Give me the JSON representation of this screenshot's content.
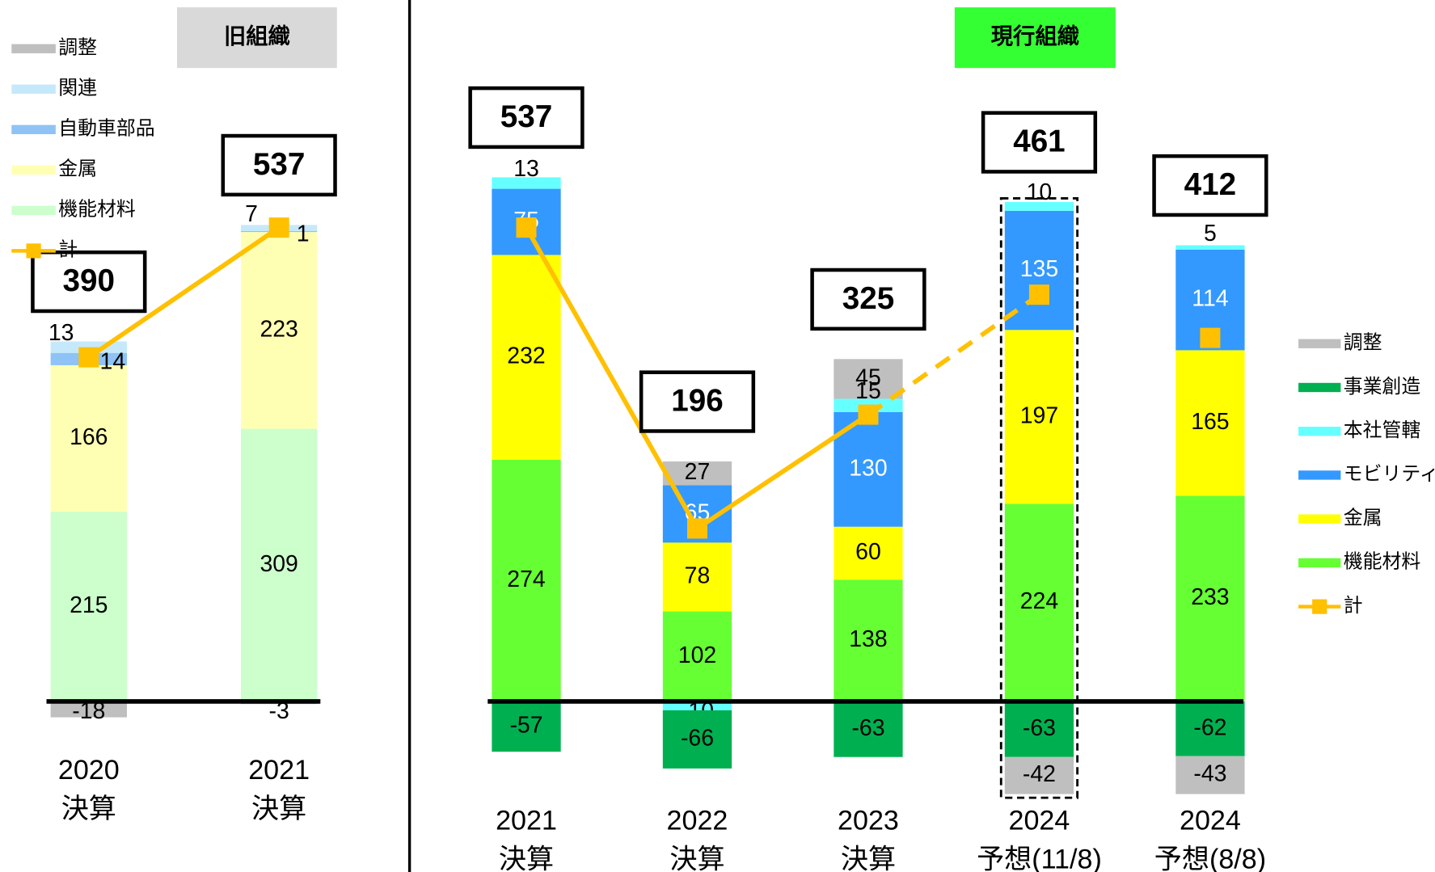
{
  "chart_data": [
    {
      "type": "bar",
      "stacked": true,
      "title": "旧組織",
      "title_color": "#d9d9d9",
      "legend": "upper left",
      "categories": [
        [
          "2020",
          "決算"
        ],
        [
          "2021",
          "決算"
        ]
      ],
      "ylim": [
        -110,
        620
      ],
      "series": [
        {
          "name": "調整",
          "color": "#bfbfbf",
          "values": [
            -18,
            -3
          ]
        },
        {
          "name": "関連",
          "color": "#c5e9fb",
          "values": [
            13,
            7
          ]
        },
        {
          "name": "自動車部品",
          "color": "#8fc3f5",
          "values": [
            14,
            1
          ]
        },
        {
          "name": "金属",
          "color": "#ffffb3",
          "values": [
            166,
            223
          ]
        },
        {
          "name": "機能材料",
          "color": "#ccffcc",
          "values": [
            215,
            309
          ]
        },
        {
          "name": "計",
          "type": "line",
          "color": "#ffc000",
          "values": [
            390,
            537
          ],
          "line_style": [
            "solid"
          ]
        }
      ]
    },
    {
      "type": "bar",
      "stacked": true,
      "title": "現行組織",
      "title_color": "#33ff33",
      "legend": "right",
      "categories": [
        [
          "2021",
          "決算"
        ],
        [
          "2022",
          "決算"
        ],
        [
          "2023",
          "決算"
        ],
        [
          "2024",
          "予想(11/8)"
        ],
        [
          "2024",
          "予想(8/8)"
        ]
      ],
      "ylim": [
        -110,
        620
      ],
      "highlight": 3,
      "series": [
        {
          "name": "調整",
          "color": "#bfbfbf",
          "values": [
            null,
            27,
            45,
            -42,
            -43
          ]
        },
        {
          "name": "事業創造",
          "color": "#00b050",
          "values": [
            -57,
            -66,
            -63,
            -63,
            -62
          ]
        },
        {
          "name": "本社管轄",
          "color": "#66ffff",
          "values": [
            13,
            -10,
            15,
            10,
            5
          ]
        },
        {
          "name": "モビリティ",
          "color": "#3399ff",
          "label_color": "#ffffff",
          "values": [
            75,
            65,
            130,
            135,
            114
          ]
        },
        {
          "name": "金属",
          "color": "#ffff00",
          "values": [
            232,
            78,
            60,
            197,
            165
          ]
        },
        {
          "name": "機能材料",
          "color": "#66ff33",
          "values": [
            274,
            102,
            138,
            224,
            233
          ]
        },
        {
          "name": "計",
          "type": "line",
          "color": "#ffc000",
          "values": [
            537,
            196,
            325,
            461,
            412
          ],
          "line_style": [
            "solid",
            "solid",
            "dashed",
            null
          ]
        }
      ]
    }
  ]
}
